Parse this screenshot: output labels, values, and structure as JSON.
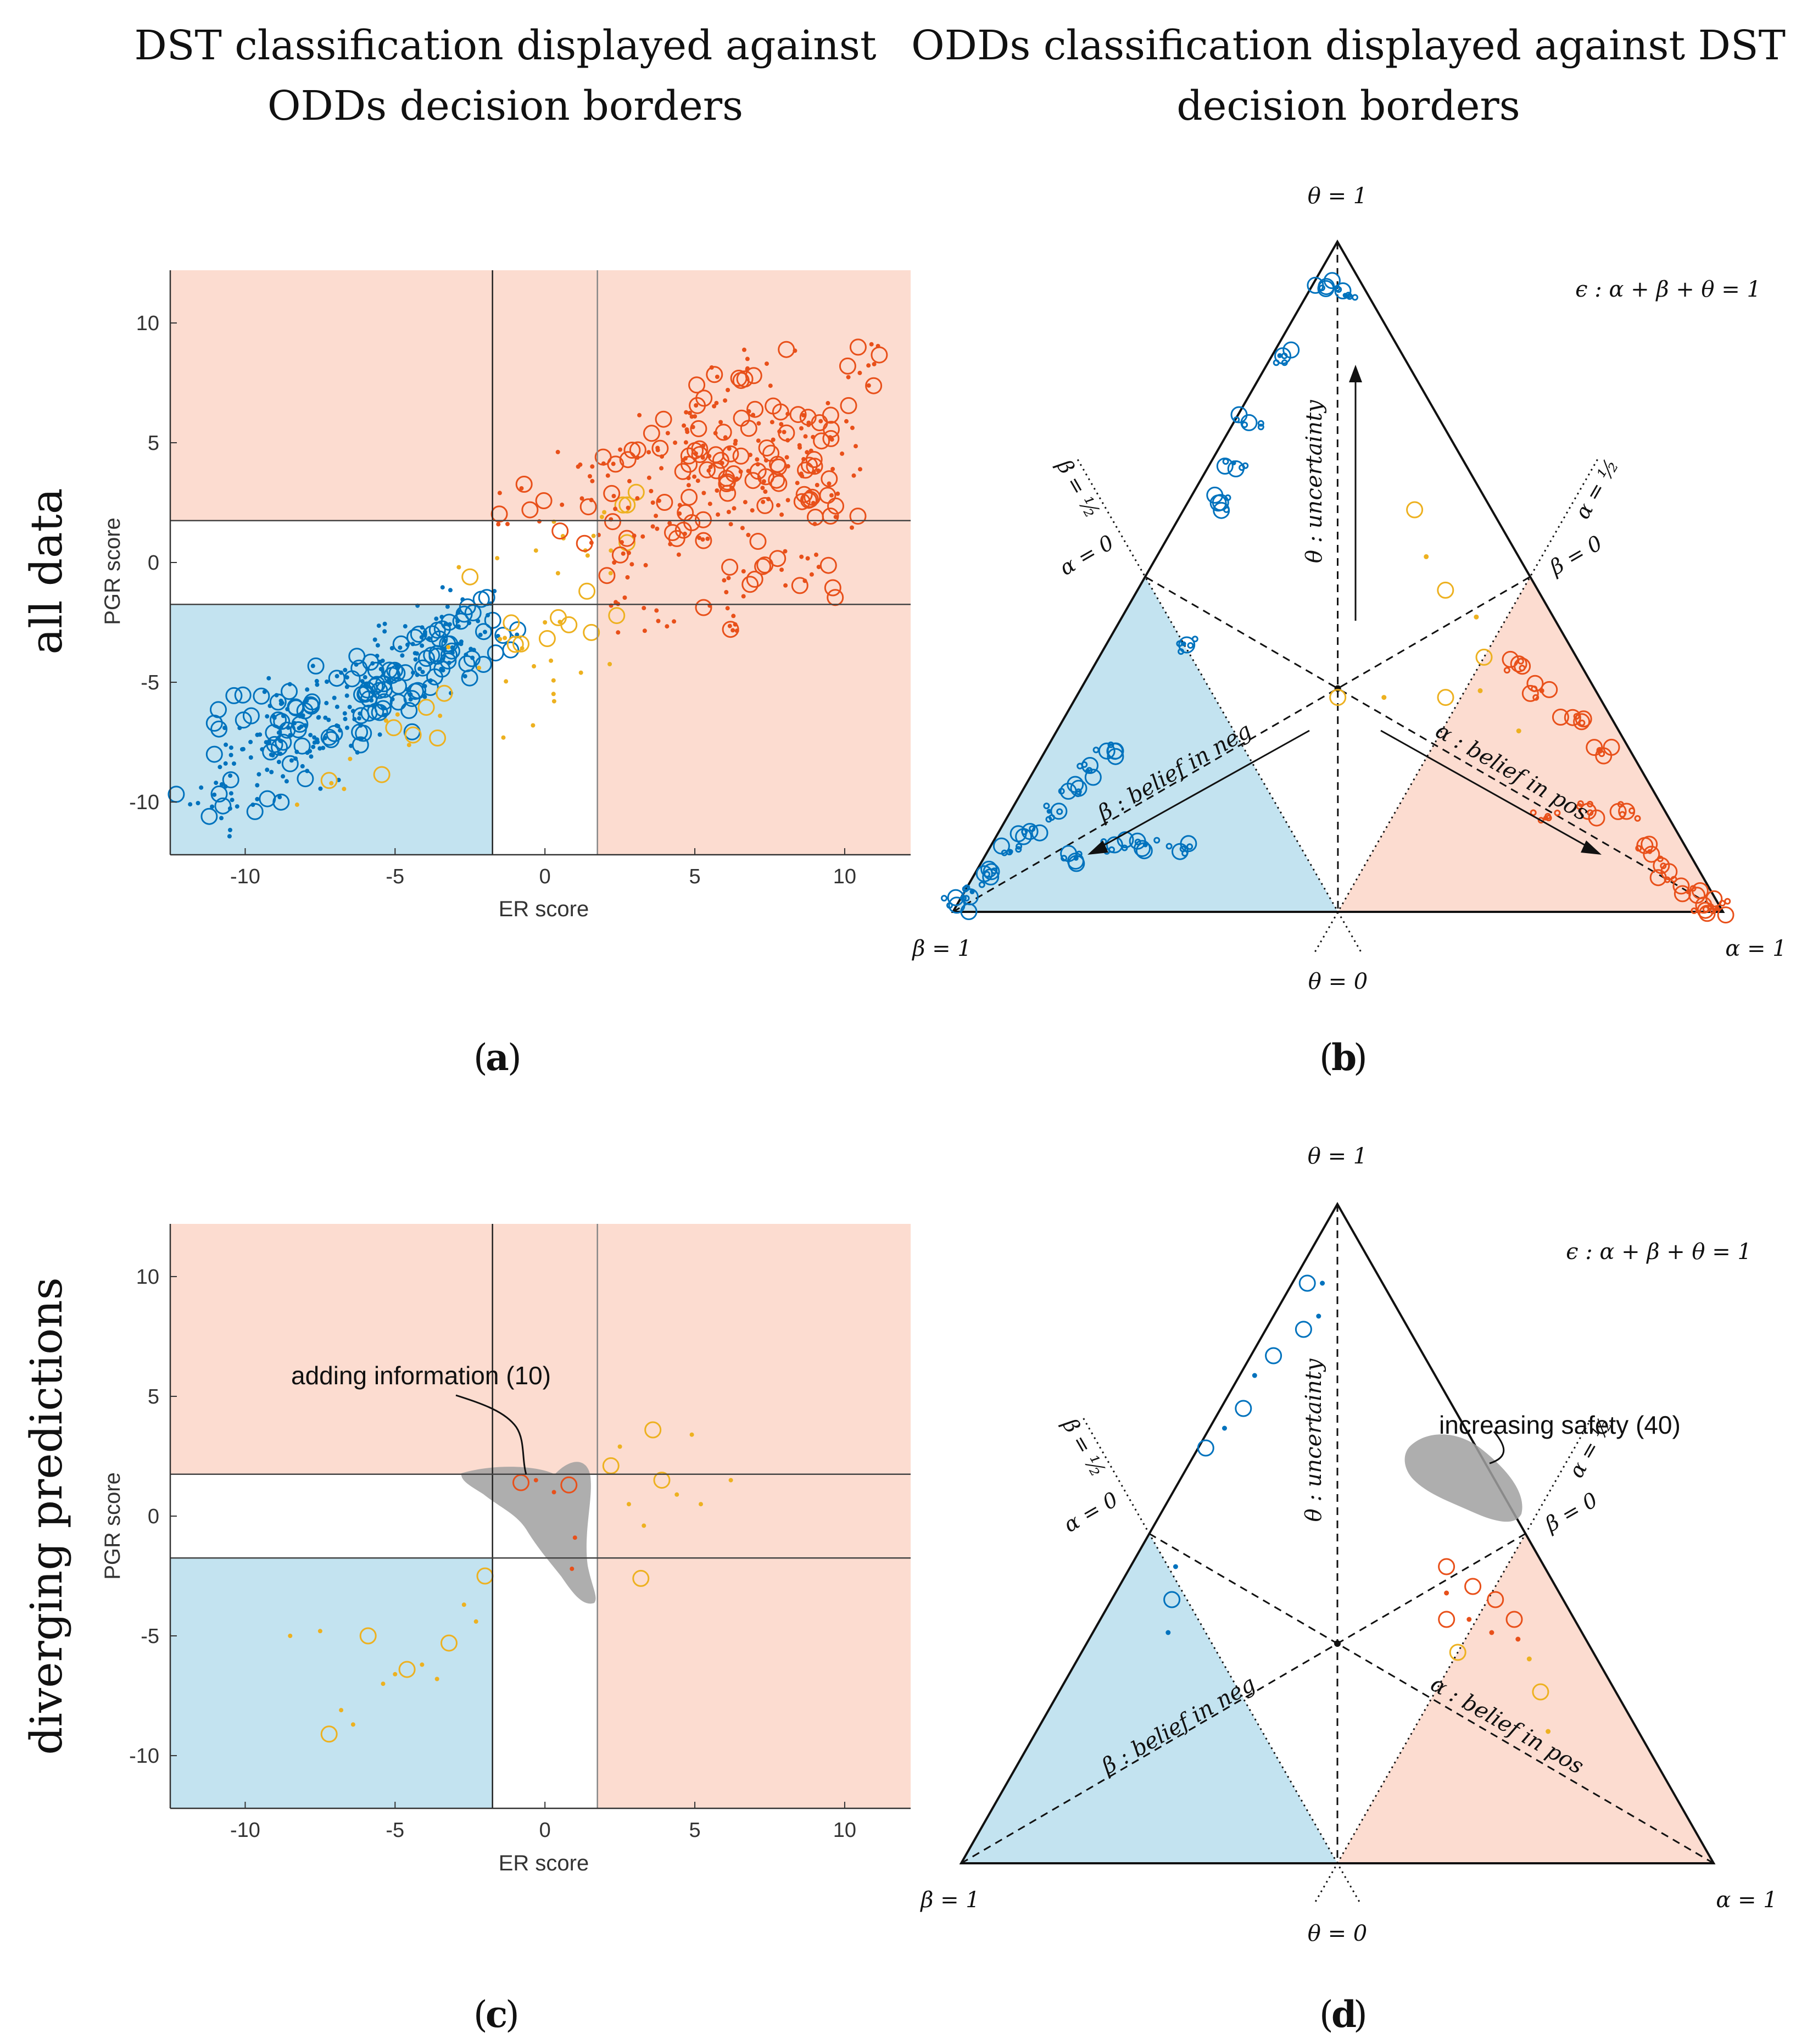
{
  "titles": {
    "col_left": [
      "DST classification displayed against",
      "ODDs decision borders"
    ],
    "col_right": [
      "ODDs classification displayed against DST",
      "decision borders"
    ]
  },
  "row_labels": {
    "top": "all data",
    "bottom": "diverging predictions"
  },
  "panel_labels": {
    "a": "a",
    "b": "b",
    "c": "c",
    "d": "d"
  },
  "colors": {
    "neg": "#0072bd",
    "pos": "#e8501a",
    "unc": "#edb120",
    "neg_region": "#c3e3f0",
    "pos_region": "#fcdcd0",
    "highlight": "#a0a0a0"
  },
  "chart_data": [
    {
      "id": "a",
      "type": "scatter",
      "xlabel": "ER score",
      "ylabel": "PGR score",
      "xlim": [
        -12.5,
        12.2
      ],
      "ylim": [
        -12.2,
        12.2
      ],
      "xticks": [
        -10,
        -5,
        0,
        5,
        10
      ],
      "yticks": [
        -10,
        -5,
        0,
        5,
        10
      ],
      "thresholds": {
        "x": [
          -1.75,
          1.75
        ],
        "y": [
          -1.75,
          1.75
        ]
      },
      "series": [
        {
          "name": "negative",
          "color": "#0072bd",
          "points": [
            [
              -11.2,
              -10.6
            ],
            [
              -10.5,
              -8.9
            ],
            [
              -10.1,
              -7.8
            ],
            [
              -9.8,
              -6.4
            ],
            [
              -9.2,
              -7.5
            ],
            [
              -8.8,
              -5.9
            ],
            [
              -8.5,
              -8.4
            ],
            [
              -8.0,
              -6.8
            ],
            [
              -7.6,
              -5.1
            ],
            [
              -7.2,
              -7.3
            ],
            [
              -6.8,
              -4.6
            ],
            [
              -6.4,
              -6.2
            ],
            [
              -6.0,
              -5.5
            ],
            [
              -5.6,
              -3.9
            ],
            [
              -5.2,
              -5.0
            ],
            [
              -4.8,
              -3.4
            ],
            [
              -4.4,
              -4.6
            ],
            [
              -4.0,
              -2.9
            ],
            [
              -3.6,
              -3.8
            ],
            [
              -3.2,
              -2.6
            ],
            [
              -2.8,
              -3.4
            ],
            [
              -2.4,
              -2.1
            ],
            [
              -2.0,
              -2.9
            ],
            [
              -9.6,
              -9.3
            ],
            [
              -8.6,
              -7.0
            ],
            [
              -7.8,
              -8.1
            ],
            [
              -6.6,
              -6.9
            ],
            [
              -5.4,
              -6.1
            ],
            [
              -4.6,
              -5.3
            ],
            [
              -3.4,
              -4.5
            ]
          ]
        },
        {
          "name": "uncertain",
          "color": "#edb120",
          "points": [
            [
              -7.2,
              -9.1
            ],
            [
              -6.5,
              -8.2
            ],
            [
              -5.3,
              -6.6
            ],
            [
              -4.4,
              -7.2
            ],
            [
              -3.5,
              -6.4
            ],
            [
              -2.2,
              -4.4
            ],
            [
              -0.8,
              -3.4
            ],
            [
              -0.4,
              -6.8
            ],
            [
              0.2,
              -4.1
            ],
            [
              0.8,
              -2.6
            ],
            [
              -0.3,
              0.5
            ],
            [
              0.6,
              1.1
            ],
            [
              1.4,
              -1.2
            ],
            [
              2.2,
              0.5
            ],
            [
              1.2,
              -4.6
            ],
            [
              -2.5,
              -0.6
            ],
            [
              0.0,
              -2.5
            ],
            [
              1.9,
              1.9
            ],
            [
              2.6,
              2.4
            ],
            [
              -1.5,
              -3.2
            ]
          ]
        },
        {
          "name": "positive",
          "color": "#e8501a",
          "points": [
            [
              -0.5,
              2.2
            ],
            [
              1.5,
              3.6
            ],
            [
              2.2,
              1.8
            ],
            [
              3.1,
              4.7
            ],
            [
              3.6,
              2.5
            ],
            [
              4.1,
              5.4
            ],
            [
              4.6,
              3.8
            ],
            [
              5.0,
              6.1
            ],
            [
              5.3,
              2.9
            ],
            [
              5.7,
              4.5
            ],
            [
              6.1,
              7.2
            ],
            [
              6.4,
              3.5
            ],
            [
              6.8,
              5.6
            ],
            [
              7.1,
              4.1
            ],
            [
              7.4,
              8.3
            ],
            [
              7.8,
              3.3
            ],
            [
              8.1,
              6.2
            ],
            [
              8.5,
              4.8
            ],
            [
              8.8,
              2.6
            ],
            [
              9.2,
              5.9
            ],
            [
              9.6,
              3.9
            ],
            [
              10.1,
              8.2
            ],
            [
              3.3,
              -1.9
            ],
            [
              5.5,
              -1.8
            ],
            [
              7.0,
              -0.7
            ],
            [
              8.9,
              -0.5
            ],
            [
              2.8,
              0.4
            ],
            [
              4.4,
              1.0
            ],
            [
              6.2,
              1.6
            ],
            [
              9.7,
              1.9
            ]
          ]
        }
      ]
    },
    {
      "id": "b",
      "type": "ternary",
      "vertex_labels": {
        "top": "θ = 1",
        "left": "β = 1",
        "right": "α = 1",
        "bottom": "θ = 0"
      },
      "equation": "ϵ : α + β + θ = 1",
      "line_labels": {
        "beta_half": "β = ½",
        "alpha_half": "α = ½",
        "alpha_zero": "α = 0",
        "beta_zero": "β = 0"
      },
      "axis_labels": {
        "theta": "θ : uncertainty",
        "beta": "β : belief in neg",
        "alpha": "α : belief in pos"
      },
      "series": [
        {
          "name": "negative",
          "color": "#0072bd",
          "points": [
            [
              0.0,
              0.99,
              0.01
            ],
            [
              0.01,
              0.96,
              0.03
            ],
            [
              0.02,
              0.92,
              0.06
            ],
            [
              0.03,
              0.88,
              0.09
            ],
            [
              0.04,
              0.84,
              0.12
            ],
            [
              0.05,
              0.8,
              0.15
            ],
            [
              0.06,
              0.76,
              0.18
            ],
            [
              0.07,
              0.72,
              0.21
            ],
            [
              0.08,
              0.68,
              0.24
            ],
            [
              0.12,
              0.8,
              0.08
            ],
            [
              0.16,
              0.74,
              0.1
            ],
            [
              0.2,
              0.7,
              0.1
            ],
            [
              0.25,
              0.66,
              0.09
            ],
            [
              0.1,
              0.5,
              0.4
            ],
            [
              0.04,
              0.35,
              0.61
            ],
            [
              0.03,
              0.3,
              0.67
            ],
            [
              0.02,
              0.25,
              0.73
            ],
            [
              0.01,
              0.16,
              0.83
            ],
            [
              0.02,
              0.05,
              0.93
            ],
            [
              0.05,
              0.03,
              0.92
            ]
          ]
        },
        {
          "name": "uncertain",
          "color": "#edb120",
          "points": [
            [
              0.3,
              0.1,
              0.6
            ],
            [
              0.35,
              0.12,
              0.53
            ],
            [
              0.4,
              0.12,
              0.48
            ],
            [
              0.46,
              0.1,
              0.44
            ],
            [
              0.5,
              0.12,
              0.38
            ],
            [
              0.52,
              0.15,
              0.33
            ],
            [
              0.48,
              0.2,
              0.32
            ],
            [
              0.4,
              0.28,
              0.32
            ],
            [
              0.34,
              0.34,
              0.32
            ],
            [
              0.6,
              0.13,
              0.27
            ]
          ]
        },
        {
          "name": "positive",
          "color": "#e8501a",
          "points": [
            [
              0.55,
              0.08,
              0.37
            ],
            [
              0.6,
              0.07,
              0.33
            ],
            [
              0.66,
              0.05,
              0.29
            ],
            [
              0.72,
              0.04,
              0.24
            ],
            [
              0.8,
              0.05,
              0.15
            ],
            [
              0.86,
              0.05,
              0.09
            ],
            [
              0.9,
              0.04,
              0.06
            ],
            [
              0.94,
              0.03,
              0.03
            ],
            [
              0.97,
              0.02,
              0.01
            ],
            [
              0.99,
              0.005,
              0.005
            ],
            [
              0.75,
              0.1,
              0.15
            ],
            [
              0.7,
              0.16,
              0.14
            ]
          ]
        }
      ]
    },
    {
      "id": "c",
      "type": "scatter",
      "xlabel": "ER score",
      "ylabel": "PGR score",
      "xlim": [
        -12.5,
        12.2
      ],
      "ylim": [
        -12.2,
        12.2
      ],
      "xticks": [
        -10,
        -5,
        0,
        5,
        10
      ],
      "yticks": [
        -10,
        -5,
        0,
        5,
        10
      ],
      "thresholds": {
        "x": [
          -1.75,
          1.75
        ],
        "y": [
          -1.75,
          1.75
        ]
      },
      "annotation": "adding information (10)",
      "series": [
        {
          "name": "uncertain",
          "color": "#edb120",
          "points": [
            [
              -7.2,
              -9.1
            ],
            [
              -6.8,
              -8.1
            ],
            [
              -6.4,
              -8.7
            ],
            [
              -5.9,
              -5.0
            ],
            [
              -5.4,
              -7.0
            ],
            [
              -5.0,
              -6.6
            ],
            [
              -4.6,
              -6.4
            ],
            [
              -4.1,
              -6.2
            ],
            [
              -3.6,
              -6.8
            ],
            [
              -3.2,
              -5.3
            ],
            [
              -2.7,
              -3.7
            ],
            [
              -2.3,
              -4.4
            ],
            [
              -2.0,
              -2.5
            ],
            [
              -8.5,
              -5.0
            ],
            [
              -7.5,
              -4.8
            ],
            [
              2.2,
              2.1
            ],
            [
              2.8,
              0.5
            ],
            [
              3.3,
              -0.4
            ],
            [
              3.9,
              1.5
            ],
            [
              4.4,
              0.9
            ],
            [
              4.9,
              3.4
            ],
            [
              3.2,
              -2.6
            ],
            [
              2.5,
              2.9
            ],
            [
              5.2,
              0.5
            ],
            [
              3.6,
              3.6
            ],
            [
              6.2,
              1.5
            ]
          ]
        },
        {
          "name": "positive",
          "color": "#e8501a",
          "points": [
            [
              -0.8,
              1.4
            ],
            [
              -0.3,
              1.5
            ],
            [
              0.3,
              1.0
            ],
            [
              0.8,
              1.3
            ],
            [
              1.0,
              -0.9
            ],
            [
              0.9,
              -2.2
            ]
          ]
        }
      ]
    },
    {
      "id": "d",
      "type": "ternary",
      "vertex_labels": {
        "top": "θ = 1",
        "left": "β = 1",
        "right": "α = 1",
        "bottom": "θ = 0"
      },
      "equation": "ϵ : α + β + θ = 1",
      "line_labels": {
        "beta_half": "β = ½",
        "alpha_half": "α = ½",
        "alpha_zero": "α = 0",
        "beta_zero": "β = 0"
      },
      "axis_labels": {
        "theta": "θ : uncertainty",
        "beta": "β : belief in neg",
        "alpha": "α : belief in pos"
      },
      "annotation": "increasing safety (40)",
      "series": [
        {
          "name": "negative",
          "color": "#0072bd",
          "points": [
            [
              0.02,
              0.1,
              0.88
            ],
            [
              0.04,
              0.08,
              0.88
            ],
            [
              0.05,
              0.14,
              0.81
            ],
            [
              0.06,
              0.11,
              0.83
            ],
            [
              0.03,
              0.28,
              0.69
            ],
            [
              0.02,
              0.32,
              0.66
            ],
            [
              0.01,
              0.36,
              0.63
            ],
            [
              0.02,
              0.24,
              0.74
            ],
            [
              0.03,
              0.2,
              0.77
            ],
            [
              0.1,
              0.55,
              0.35
            ],
            [
              0.08,
              0.52,
              0.4
            ],
            [
              0.06,
              0.49,
              0.45
            ]
          ]
        },
        {
          "name": "uncertain",
          "color": "#edb120",
          "points": [
            [
              0.5,
              0.18,
              0.32
            ],
            [
              0.6,
              0.09,
              0.31
            ],
            [
              0.64,
              0.1,
              0.26
            ],
            [
              0.68,
              0.12,
              0.2
            ]
          ]
        },
        {
          "name": "positive",
          "color": "#e8501a",
          "points": [
            [
              0.42,
              0.13,
              0.45
            ],
            [
              0.44,
              0.15,
              0.41
            ],
            [
              0.47,
              0.11,
              0.42
            ],
            [
              0.49,
              0.14,
              0.37
            ],
            [
              0.51,
              0.09,
              0.4
            ],
            [
              0.53,
              0.12,
              0.35
            ],
            [
              0.55,
              0.08,
              0.37
            ],
            [
              0.57,
              0.09,
              0.34
            ],
            [
              0.46,
              0.17,
              0.37
            ]
          ]
        }
      ]
    }
  ]
}
